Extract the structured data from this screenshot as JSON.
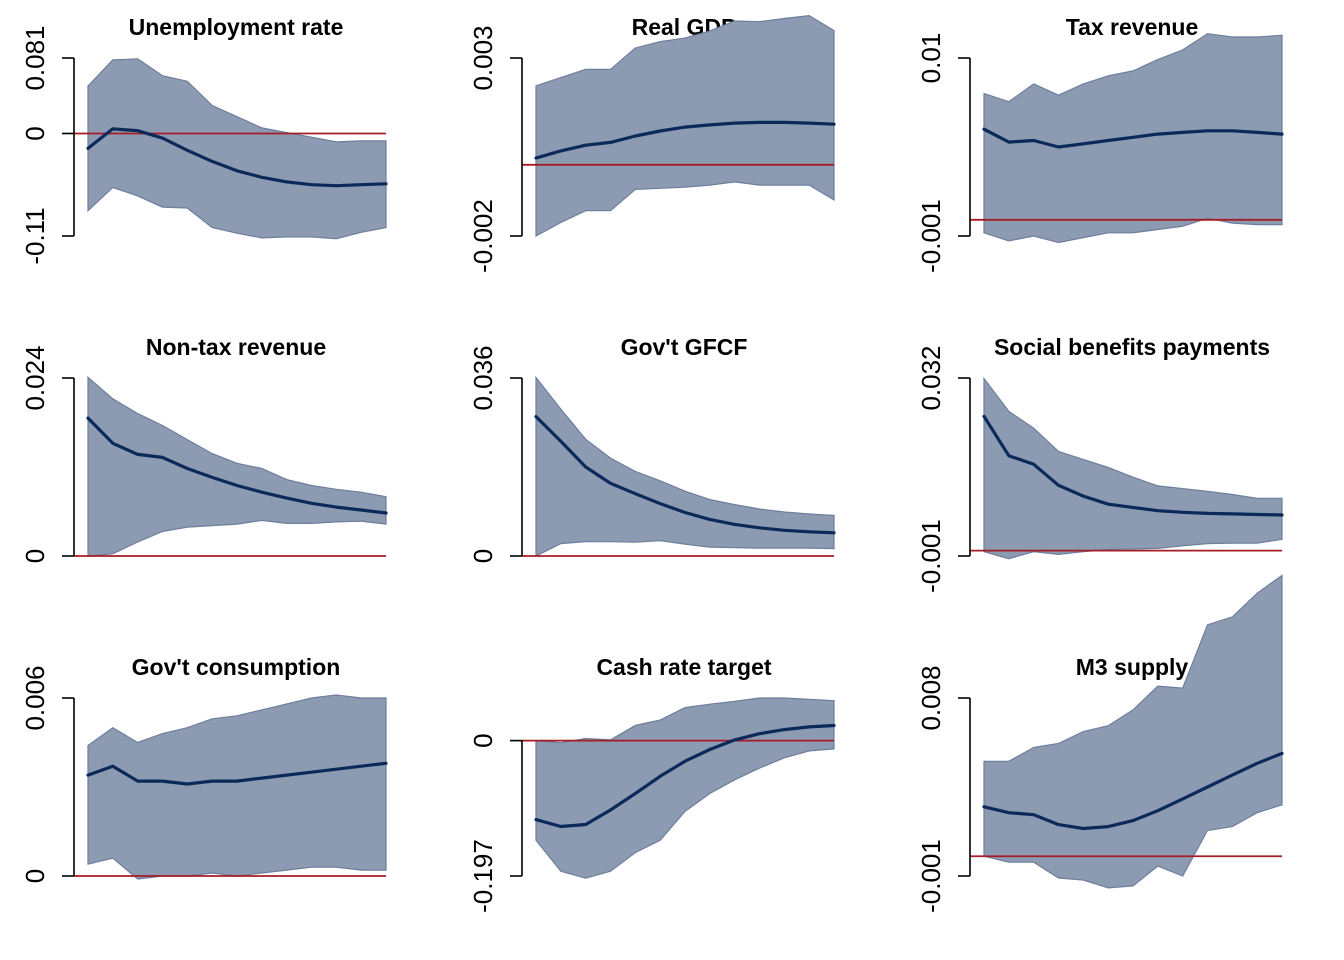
{
  "colors": {
    "band_fill": "#8c9ab2",
    "band_edge": "#6e7f9c",
    "line": "#0b2a5a",
    "zero_line": "#a51c24",
    "axis": "#000000"
  },
  "chart_data": [
    {
      "type": "area",
      "title": "Unemployment rate",
      "ytick_labels": [
        "-0.11",
        "0",
        "0.081"
      ],
      "ylim": [
        -0.11,
        0.081
      ],
      "x": [
        0,
        1,
        2,
        3,
        4,
        5,
        6,
        7,
        8,
        9,
        10,
        11,
        12
      ],
      "irf": [
        -0.016,
        0.005,
        0.003,
        -0.005,
        -0.018,
        -0.03,
        -0.04,
        -0.047,
        -0.052,
        -0.055,
        -0.056,
        -0.055,
        -0.054
      ],
      "lower": [
        -0.083,
        -0.058,
        -0.067,
        -0.079,
        -0.08,
        -0.101,
        -0.107,
        -0.112,
        -0.111,
        -0.111,
        -0.113,
        -0.106,
        -0.101
      ],
      "upper": [
        0.051,
        0.079,
        0.08,
        0.062,
        0.056,
        0.03,
        0.018,
        0.006,
        0.001,
        -0.004,
        -0.009,
        -0.008,
        -0.008
      ]
    },
    {
      "type": "area",
      "title": "Real GDP",
      "ytick_labels": [
        "-0.002",
        "0.003"
      ],
      "ylim": [
        -0.002,
        0.003
      ],
      "x": [
        0,
        1,
        2,
        3,
        4,
        5,
        6,
        7,
        8,
        9,
        10,
        11,
        12
      ],
      "irf": [
        0.00019,
        0.00039,
        0.00055,
        0.00063,
        0.00081,
        0.00095,
        0.00106,
        0.00112,
        0.00117,
        0.00119,
        0.00119,
        0.00117,
        0.00114
      ],
      "lower": [
        -0.002,
        -0.00162,
        -0.00129,
        -0.00129,
        -0.00069,
        -0.00066,
        -0.00063,
        -0.00057,
        -0.00048,
        -0.00057,
        -0.00057,
        -0.00057,
        -0.00099
      ],
      "upper": [
        0.00222,
        0.00245,
        0.00268,
        0.00268,
        0.00328,
        0.00346,
        0.00356,
        0.00376,
        0.00404,
        0.00402,
        0.00411,
        0.00419,
        0.00377
      ]
    },
    {
      "type": "area",
      "title": "Tax revenue",
      "ytick_labels": [
        "-0.001",
        "0.01"
      ],
      "ylim": [
        -0.001,
        0.01
      ],
      "x": [
        0,
        1,
        2,
        3,
        4,
        5,
        6,
        7,
        8,
        9,
        10,
        11,
        12
      ],
      "irf": [
        0.0056,
        0.0048,
        0.0049,
        0.0045,
        0.0047,
        0.0049,
        0.0051,
        0.0053,
        0.0054,
        0.0055,
        0.0055,
        0.0054,
        0.0053
      ],
      "lower": [
        -0.0008,
        -0.0013,
        -0.001,
        -0.0014,
        -0.0011,
        -0.0008,
        -0.0008,
        -0.0006,
        -0.0004,
        0.0001,
        -0.0002,
        -0.0003,
        -0.0003
      ],
      "upper": [
        0.0078,
        0.0073,
        0.0084,
        0.0077,
        0.0084,
        0.0089,
        0.0092,
        0.0099,
        0.0105,
        0.0115,
        0.0113,
        0.0113,
        0.0114
      ]
    },
    {
      "type": "area",
      "title": "Non-tax revenue",
      "ytick_labels": [
        "0",
        "0.024"
      ],
      "ylim": [
        0,
        0.024
      ],
      "x": [
        0,
        1,
        2,
        3,
        4,
        5,
        6,
        7,
        8,
        9,
        10,
        11,
        12
      ],
      "irf": [
        0.0186,
        0.0152,
        0.0137,
        0.0133,
        0.0118,
        0.0106,
        0.0095,
        0.0086,
        0.0078,
        0.0071,
        0.0066,
        0.0062,
        0.0058
      ],
      "lower": [
        0.0,
        0.0003,
        0.0019,
        0.0033,
        0.0039,
        0.0041,
        0.0043,
        0.0048,
        0.0044,
        0.0044,
        0.0046,
        0.0047,
        0.0043
      ],
      "upper": [
        0.0241,
        0.0212,
        0.0192,
        0.0176,
        0.0157,
        0.0138,
        0.0125,
        0.0118,
        0.0103,
        0.0095,
        0.009,
        0.0086,
        0.008
      ]
    },
    {
      "type": "area",
      "title": "Gov't GFCF",
      "ytick_labels": [
        "0",
        "0.036"
      ],
      "ylim": [
        0,
        0.036
      ],
      "x": [
        0,
        1,
        2,
        3,
        4,
        5,
        6,
        7,
        8,
        9,
        10,
        11,
        12
      ],
      "irf": [
        0.0282,
        0.0232,
        0.018,
        0.0147,
        0.0126,
        0.0106,
        0.0088,
        0.0074,
        0.0064,
        0.0057,
        0.0052,
        0.0049,
        0.0047
      ],
      "lower": [
        0.0,
        0.0025,
        0.0029,
        0.0029,
        0.0028,
        0.0031,
        0.0024,
        0.0018,
        0.0017,
        0.0016,
        0.0016,
        0.0016,
        0.0015
      ],
      "upper": [
        0.0361,
        0.0297,
        0.0236,
        0.0198,
        0.0171,
        0.0152,
        0.0131,
        0.0114,
        0.0104,
        0.0095,
        0.0089,
        0.0085,
        0.0082
      ]
    },
    {
      "type": "area",
      "title": "Social benefits payments",
      "ytick_labels": [
        "-0.001",
        "0.032"
      ],
      "ylim": [
        -0.001,
        0.032
      ],
      "x": [
        0,
        1,
        2,
        3,
        4,
        5,
        6,
        7,
        8,
        9,
        10,
        11,
        12
      ],
      "irf": [
        0.0249,
        0.0176,
        0.016,
        0.0121,
        0.0101,
        0.0086,
        0.008,
        0.0074,
        0.0071,
        0.0069,
        0.0068,
        0.0067,
        0.0066
      ],
      "lower": [
        -0.0002,
        -0.0015,
        -0.0002,
        -0.0007,
        -0.0002,
        0.0002,
        0.0003,
        0.0004,
        0.0009,
        0.0013,
        0.0014,
        0.0014,
        0.0021
      ],
      "upper": [
        0.0319,
        0.0258,
        0.0227,
        0.0184,
        0.0169,
        0.0154,
        0.0136,
        0.012,
        0.0115,
        0.011,
        0.0104,
        0.0097,
        0.0097
      ]
    },
    {
      "type": "area",
      "title": "Gov't consumption",
      "ytick_labels": [
        "0",
        "0.006"
      ],
      "ylim": [
        0,
        0.006
      ],
      "x": [
        0,
        1,
        2,
        3,
        4,
        5,
        6,
        7,
        8,
        9,
        10,
        11,
        12
      ],
      "irf": [
        0.0034,
        0.0037,
        0.0032,
        0.0032,
        0.0031,
        0.0032,
        0.0032,
        0.0033,
        0.0034,
        0.0035,
        0.0036,
        0.0037,
        0.0038
      ],
      "lower": [
        0.0004,
        0.0006,
        -0.0001,
        0.0,
        0.0,
        0.0001,
        0.0,
        0.0001,
        0.0002,
        0.0003,
        0.0003,
        0.0002,
        0.0002
      ],
      "upper": [
        0.0044,
        0.005,
        0.0045,
        0.0048,
        0.005,
        0.0053,
        0.0054,
        0.0056,
        0.0058,
        0.006,
        0.0061,
        0.006,
        0.006
      ]
    },
    {
      "type": "area",
      "title": "Cash rate target",
      "ytick_labels": [
        "-0.197",
        "0"
      ],
      "ylim": [
        -0.197,
        0.062
      ],
      "x": [
        0,
        1,
        2,
        3,
        4,
        5,
        6,
        7,
        8,
        9,
        10,
        11,
        12
      ],
      "irf": [
        -0.115,
        -0.125,
        -0.122,
        -0.101,
        -0.077,
        -0.052,
        -0.03,
        -0.013,
        0.001,
        0.01,
        0.016,
        0.02,
        0.022
      ],
      "lower": [
        -0.145,
        -0.19,
        -0.2,
        -0.19,
        -0.163,
        -0.145,
        -0.103,
        -0.077,
        -0.057,
        -0.04,
        -0.025,
        -0.015,
        -0.012
      ],
      "upper": [
        0.0,
        -0.003,
        0.003,
        0.001,
        0.022,
        0.03,
        0.048,
        0.053,
        0.057,
        0.062,
        0.062,
        0.06,
        0.058
      ]
    },
    {
      "type": "area",
      "title": "M3 supply",
      "ytick_labels": [
        "-0.001",
        "0.008"
      ],
      "ylim": [
        -0.001,
        0.008
      ],
      "x": [
        0,
        1,
        2,
        3,
        4,
        5,
        6,
        7,
        8,
        9,
        10,
        11,
        12
      ],
      "irf": [
        0.0025,
        0.0022,
        0.0021,
        0.0016,
        0.0014,
        0.0015,
        0.0018,
        0.0023,
        0.0029,
        0.0035,
        0.0041,
        0.0047,
        0.0052
      ],
      "lower": [
        0.0,
        -0.0003,
        -0.0003,
        -0.0011,
        -0.0012,
        -0.0016,
        -0.0015,
        -0.0005,
        -0.001,
        0.0013,
        0.0015,
        0.0022,
        0.0026
      ],
      "upper": [
        0.0048,
        0.0048,
        0.0055,
        0.0057,
        0.0063,
        0.0066,
        0.0074,
        0.0086,
        0.0085,
        0.0117,
        0.0121,
        0.0133,
        0.0142
      ]
    }
  ]
}
